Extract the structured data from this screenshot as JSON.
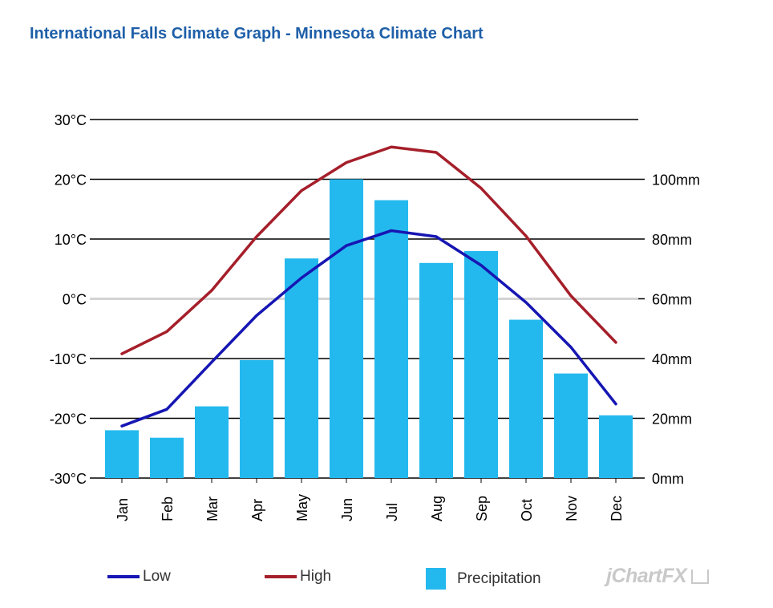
{
  "chart_data": {
    "type": "bar",
    "title": "International Falls Climate Graph - Minnesota Climate Chart",
    "categories": [
      "Jan",
      "Feb",
      "Mar",
      "Apr",
      "May",
      "Jun",
      "Jul",
      "Aug",
      "Sep",
      "Oct",
      "Nov",
      "Dec"
    ],
    "series": [
      {
        "name": "Low",
        "type": "line",
        "axis": "temperature",
        "values": [
          -21.3,
          -18.5,
          -10.6,
          -2.8,
          3.5,
          8.9,
          11.4,
          10.4,
          5.6,
          -0.6,
          -8.1,
          -17.6
        ],
        "color": "#1616b3"
      },
      {
        "name": "High",
        "type": "line",
        "axis": "temperature",
        "values": [
          -9.2,
          -5.5,
          1.4,
          10.4,
          18.1,
          22.8,
          25.4,
          24.5,
          18.5,
          10.5,
          0.5,
          -7.3
        ],
        "color": "#a51f2a"
      },
      {
        "name": "Precipitation",
        "type": "bar",
        "axis": "precipitation",
        "values": [
          16,
          13.5,
          24,
          39.5,
          73.5,
          100,
          93,
          72,
          76,
          53,
          35,
          21
        ],
        "color": "#24b9ee"
      }
    ],
    "y_left": {
      "ylim": [
        -30,
        30
      ],
      "ticks": [
        30,
        20,
        10,
        0,
        -10,
        -20,
        -30
      ],
      "tick_labels": [
        "30°C",
        "20°C",
        "10°C",
        "0°C",
        "-10°C",
        "-20°C",
        "-30°C"
      ]
    },
    "y_right": {
      "ylim": [
        0,
        100
      ],
      "ticks": [
        100,
        80,
        60,
        40,
        20,
        0
      ],
      "tick_labels": [
        "100mm",
        "80mm",
        "60mm",
        "40mm",
        "20mm",
        "0mm"
      ]
    },
    "grid": true,
    "legend_position": "bottom"
  },
  "legend": [
    {
      "label": "Low",
      "color": "#1616b3",
      "kind": "line"
    },
    {
      "label": "High",
      "color": "#a51f2a",
      "kind": "line"
    },
    {
      "label": "Precipitation",
      "color": "#24b9ee",
      "kind": "box"
    }
  ],
  "watermark": "jChartFX"
}
